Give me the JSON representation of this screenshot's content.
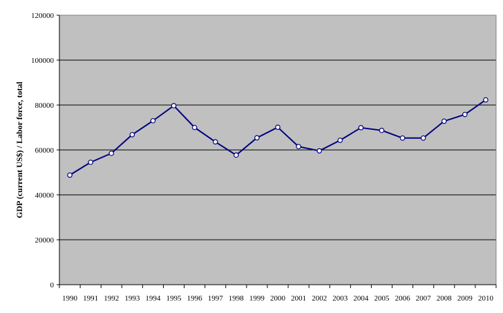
{
  "chart_data": {
    "type": "line",
    "ylabel": "GDP (current US$) / Labor force, total",
    "xlabel": "",
    "ylim": [
      0,
      120000
    ],
    "yticks": [
      0,
      20000,
      40000,
      60000,
      80000,
      100000,
      120000
    ],
    "grid": "horizontal",
    "legend": "none",
    "categories": [
      "1990",
      "1991",
      "1992",
      "1993",
      "1994",
      "1995",
      "1996",
      "1997",
      "1998",
      "1999",
      "2000",
      "2001",
      "2002",
      "2003",
      "2004",
      "2005",
      "2006",
      "2007",
      "2008",
      "2009",
      "2010"
    ],
    "series": [
      {
        "values": [
          48800,
          54500,
          58500,
          66800,
          73000,
          79700,
          70000,
          63600,
          57700,
          65400,
          70100,
          61500,
          59600,
          64300,
          69900,
          68700,
          65300,
          65300,
          72800,
          75800,
          82300
        ]
      }
    ],
    "colors": {
      "plot_background": "#c0c0c0",
      "line": "#000080",
      "marker_fill": "#ffffff",
      "gridline": "#000000"
    }
  }
}
